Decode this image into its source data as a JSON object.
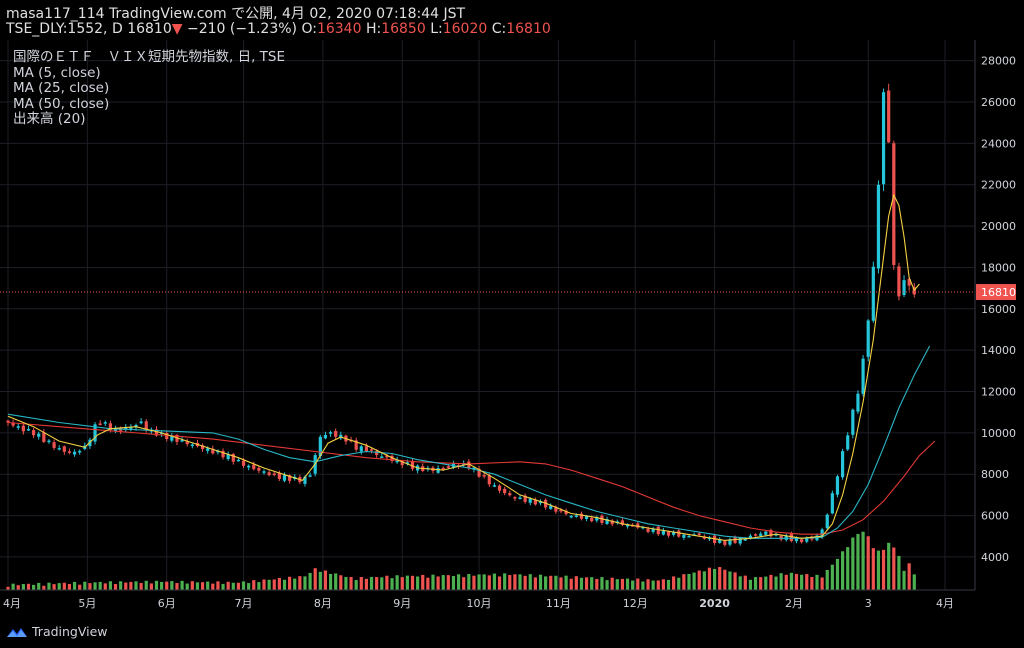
{
  "header": {
    "line1": "masa117_114 TradingView.com で公開, 4月 02, 2020 07:18:44 JST",
    "symbol": "TSE_DLY:1552, D",
    "price": "16810",
    "down_arrow": "▼",
    "change": "−210 (−1.23%)",
    "o_label": "O:",
    "o_value": "16340",
    "h_label": "H:",
    "h_value": "16850",
    "l_label": "L:",
    "l_value": "16020",
    "c_label": "C:",
    "c_value": "16810"
  },
  "legend": {
    "title": "国際のＥＴＦ　ＶＩＸ短期先物指数, 日, TSE",
    "ma5": "MA (5, close)",
    "ma25": "MA (25, close)",
    "ma50": "MA (50, close)",
    "volume": "出来高 (20)"
  },
  "brand": {
    "name": "TradingView",
    "icon": "tradingview-logo-icon"
  },
  "colors": {
    "background": "#000000",
    "up": "#26c6da",
    "down": "#ef5350",
    "vol_up": "#4caf50",
    "vol_down": "#ef5350",
    "ma5": "#f5d142",
    "ma25": "#29b6c6",
    "ma50": "#e53935",
    "grid": "#1c1f26",
    "price_line": "#ef5350"
  },
  "chart_data": {
    "type": "candlestick",
    "y_axis": {
      "position": "right",
      "range": [
        2400,
        29000
      ],
      "ticks": [
        4000,
        6000,
        8000,
        10000,
        12000,
        14000,
        16000,
        18000,
        20000,
        22000,
        24000,
        26000,
        28000
      ],
      "tick_labels": [
        "4000",
        "6000",
        "8000",
        "10000",
        "12000",
        "14000",
        "16000",
        "18000",
        "20000",
        "22000",
        "24000",
        "26000",
        "28000"
      ]
    },
    "x_axis": {
      "labels": [
        "4月",
        "5月",
        "6月",
        "7月",
        "8月",
        "9月",
        "10月",
        "11月",
        "12月",
        "2020",
        "2月",
        "3",
        "4月"
      ]
    },
    "last_price_label": "16810",
    "last_price": 16810,
    "close_series": [
      [
        0,
        10500
      ],
      [
        5,
        10200
      ],
      [
        10,
        10000
      ],
      [
        15,
        9600
      ],
      [
        20,
        9200
      ],
      [
        25,
        9000
      ],
      [
        30,
        9300
      ],
      [
        33,
        10000
      ],
      [
        35,
        10600
      ],
      [
        38,
        10400
      ],
      [
        42,
        10100
      ],
      [
        48,
        10300
      ],
      [
        52,
        10500
      ],
      [
        55,
        10100
      ],
      [
        60,
        9900
      ],
      [
        65,
        9700
      ],
      [
        70,
        9500
      ],
      [
        75,
        9300
      ],
      [
        80,
        9100
      ],
      [
        85,
        8900
      ],
      [
        90,
        8600
      ],
      [
        95,
        8300
      ],
      [
        100,
        8100
      ],
      [
        105,
        7900
      ],
      [
        110,
        7800
      ],
      [
        115,
        7700
      ],
      [
        118,
        8000
      ],
      [
        122,
        9800
      ],
      [
        125,
        10000
      ],
      [
        128,
        9900
      ],
      [
        132,
        9700
      ],
      [
        136,
        9300
      ],
      [
        140,
        9200
      ],
      [
        145,
        8900
      ],
      [
        150,
        8700
      ],
      [
        155,
        8500
      ],
      [
        160,
        8300
      ],
      [
        165,
        8200
      ],
      [
        170,
        8300
      ],
      [
        175,
        8500
      ],
      [
        180,
        8400
      ],
      [
        185,
        7900
      ],
      [
        190,
        7400
      ],
      [
        195,
        7000
      ],
      [
        200,
        6800
      ],
      [
        205,
        6700
      ],
      [
        210,
        6500
      ],
      [
        215,
        6200
      ],
      [
        220,
        6000
      ],
      [
        225,
        5900
      ],
      [
        230,
        5800
      ],
      [
        235,
        5700
      ],
      [
        240,
        5600
      ],
      [
        245,
        5500
      ],
      [
        250,
        5300
      ],
      [
        255,
        5200
      ],
      [
        260,
        5100
      ],
      [
        265,
        5000
      ],
      [
        268,
        5100
      ],
      [
        271,
        5000
      ],
      [
        275,
        4800
      ],
      [
        280,
        4700
      ],
      [
        285,
        4800
      ],
      [
        290,
        5000
      ],
      [
        295,
        5200
      ],
      [
        300,
        5000
      ],
      [
        305,
        4900
      ],
      [
        310,
        4800
      ],
      [
        315,
        4900
      ],
      [
        318,
        5300
      ],
      [
        321,
        6500
      ],
      [
        324,
        8000
      ],
      [
        327,
        9500
      ],
      [
        330,
        11000
      ],
      [
        333,
        12500
      ],
      [
        336,
        15500
      ],
      [
        338,
        18000
      ],
      [
        340,
        22000
      ],
      [
        342,
        26500
      ],
      [
        344,
        24000
      ],
      [
        346,
        18200
      ],
      [
        348,
        16500
      ],
      [
        350,
        17500
      ],
      [
        352,
        17000
      ],
      [
        354,
        16810
      ]
    ],
    "ma5": [
      [
        0,
        10800
      ],
      [
        10,
        10300
      ],
      [
        20,
        9600
      ],
      [
        30,
        9300
      ],
      [
        35,
        9900
      ],
      [
        40,
        10200
      ],
      [
        50,
        10300
      ],
      [
        60,
        10000
      ],
      [
        70,
        9600
      ],
      [
        80,
        9200
      ],
      [
        90,
        8800
      ],
      [
        100,
        8300
      ],
      [
        110,
        7900
      ],
      [
        115,
        7700
      ],
      [
        120,
        8500
      ],
      [
        125,
        9500
      ],
      [
        130,
        9800
      ],
      [
        140,
        9400
      ],
      [
        150,
        8800
      ],
      [
        160,
        8300
      ],
      [
        170,
        8200
      ],
      [
        180,
        8500
      ],
      [
        190,
        7800
      ],
      [
        200,
        7000
      ],
      [
        210,
        6600
      ],
      [
        220,
        6100
      ],
      [
        230,
        5900
      ],
      [
        240,
        5600
      ],
      [
        250,
        5400
      ],
      [
        260,
        5200
      ],
      [
        270,
        5000
      ],
      [
        280,
        4800
      ],
      [
        290,
        4900
      ],
      [
        300,
        5100
      ],
      [
        310,
        4900
      ],
      [
        318,
        5000
      ],
      [
        322,
        5600
      ],
      [
        326,
        7000
      ],
      [
        330,
        9000
      ],
      [
        334,
        11500
      ],
      [
        338,
        14500
      ],
      [
        341,
        17500
      ],
      [
        344,
        20500
      ],
      [
        346,
        21500
      ],
      [
        348,
        21000
      ],
      [
        350,
        19500
      ],
      [
        352,
        17500
      ],
      [
        354,
        16900
      ],
      [
        356,
        17200
      ]
    ],
    "ma25": [
      [
        0,
        10900
      ],
      [
        20,
        10500
      ],
      [
        40,
        10200
      ],
      [
        60,
        10100
      ],
      [
        80,
        10000
      ],
      [
        90,
        9700
      ],
      [
        100,
        9200
      ],
      [
        110,
        8800
      ],
      [
        120,
        8600
      ],
      [
        130,
        8900
      ],
      [
        140,
        9100
      ],
      [
        150,
        9000
      ],
      [
        160,
        8700
      ],
      [
        170,
        8500
      ],
      [
        180,
        8300
      ],
      [
        190,
        8000
      ],
      [
        200,
        7500
      ],
      [
        210,
        7000
      ],
      [
        220,
        6600
      ],
      [
        230,
        6200
      ],
      [
        240,
        5900
      ],
      [
        250,
        5600
      ],
      [
        260,
        5400
      ],
      [
        270,
        5200
      ],
      [
        280,
        5000
      ],
      [
        290,
        4900
      ],
      [
        300,
        4900
      ],
      [
        310,
        4900
      ],
      [
        318,
        4950
      ],
      [
        324,
        5400
      ],
      [
        330,
        6200
      ],
      [
        336,
        7500
      ],
      [
        342,
        9300
      ],
      [
        348,
        11200
      ],
      [
        354,
        12800
      ],
      [
        360,
        14200
      ]
    ],
    "ma50": [
      [
        0,
        10500
      ],
      [
        20,
        10300
      ],
      [
        40,
        10100
      ],
      [
        60,
        9900
      ],
      [
        80,
        9700
      ],
      [
        100,
        9400
      ],
      [
        120,
        9100
      ],
      [
        140,
        8800
      ],
      [
        160,
        8600
      ],
      [
        180,
        8500
      ],
      [
        200,
        8600
      ],
      [
        210,
        8500
      ],
      [
        220,
        8200
      ],
      [
        230,
        7800
      ],
      [
        240,
        7400
      ],
      [
        250,
        6900
      ],
      [
        260,
        6400
      ],
      [
        270,
        6000
      ],
      [
        280,
        5700
      ],
      [
        290,
        5400
      ],
      [
        300,
        5200
      ],
      [
        310,
        5100
      ],
      [
        318,
        5100
      ],
      [
        326,
        5300
      ],
      [
        334,
        5800
      ],
      [
        342,
        6700
      ],
      [
        350,
        7900
      ],
      [
        356,
        8900
      ],
      [
        362,
        9600
      ]
    ],
    "volume_spikes": [
      [
        0,
        3
      ],
      [
        30,
        5
      ],
      [
        60,
        6
      ],
      [
        90,
        5
      ],
      [
        116,
        11
      ],
      [
        120,
        18
      ],
      [
        135,
        9
      ],
      [
        150,
        11
      ],
      [
        175,
        12
      ],
      [
        195,
        13
      ],
      [
        225,
        10
      ],
      [
        255,
        7
      ],
      [
        277,
        20
      ],
      [
        290,
        9
      ],
      [
        305,
        14
      ],
      [
        318,
        11
      ],
      [
        322,
        22
      ],
      [
        326,
        34
      ],
      [
        330,
        47
      ],
      [
        333,
        55
      ],
      [
        336,
        49
      ],
      [
        339,
        33
      ],
      [
        342,
        38
      ],
      [
        345,
        44
      ],
      [
        348,
        30
      ],
      [
        350,
        16
      ],
      [
        352,
        24
      ],
      [
        354,
        12
      ]
    ]
  }
}
